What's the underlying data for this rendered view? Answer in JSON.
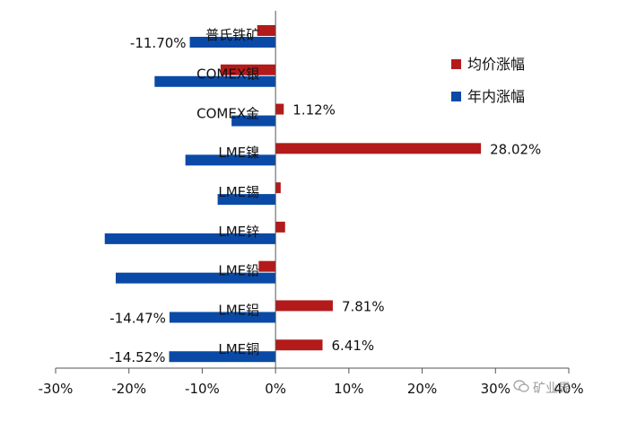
{
  "chart_data": {
    "type": "bar",
    "orientation": "horizontal",
    "categories": [
      "普氏铁矿",
      "COMEX银",
      "COMEX金",
      "LME镍",
      "LME锡",
      "LME锌",
      "LME铅",
      "LME铝",
      "LME铜"
    ],
    "series": [
      {
        "name": "均价涨幅",
        "color": "#b31b1b",
        "values": [
          -2.5,
          -7.5,
          1.12,
          28.02,
          0.7,
          1.3,
          -2.3,
          7.81,
          6.41
        ]
      },
      {
        "name": "年内涨幅",
        "color": "#0a4aa6",
        "values": [
          -11.7,
          -16.5,
          -6.0,
          -12.3,
          -7.9,
          -23.3,
          -21.8,
          -14.47,
          -14.52
        ]
      }
    ],
    "data_labels": [
      {
        "category": "普氏铁矿",
        "series": "年内涨幅",
        "text": "-11.70%"
      },
      {
        "category": "COMEX金",
        "series": "均价涨幅",
        "text": "1.12%"
      },
      {
        "category": "LME镍",
        "series": "均价涨幅",
        "text": "28.02%"
      },
      {
        "category": "LME铝",
        "series": "均价涨幅",
        "text": "7.81%"
      },
      {
        "category": "LME铝",
        "series": "年内涨幅",
        "text": "-14.47%"
      },
      {
        "category": "LME铜",
        "series": "均价涨幅",
        "text": "6.41%"
      },
      {
        "category": "LME铜",
        "series": "年内涨幅",
        "text": "-14.52%"
      }
    ],
    "xlim": [
      -30,
      40
    ],
    "x_ticks": [
      "-30%",
      "-20%",
      "-10%",
      "0%",
      "10%",
      "20%",
      "30%",
      "40%"
    ],
    "grid": false,
    "legend": "top-right"
  },
  "watermark": {
    "text": "矿业界",
    "icon": "wechat-icon"
  }
}
